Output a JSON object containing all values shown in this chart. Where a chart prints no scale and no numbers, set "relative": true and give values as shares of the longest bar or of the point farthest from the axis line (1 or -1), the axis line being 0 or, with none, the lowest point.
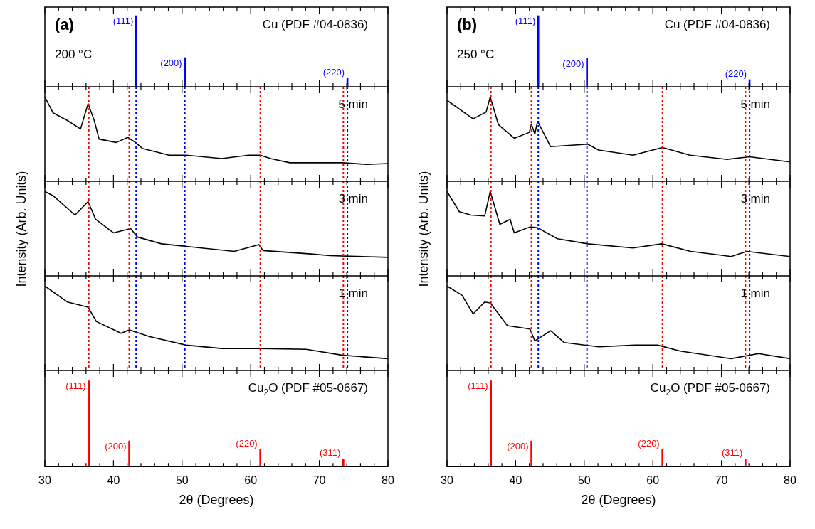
{
  "chart_data": [
    {
      "type": "bar",
      "relative": true,
      "x": [
        43.3,
        50.4,
        74.1
      ],
      "xlim": [
        30,
        80
      ],
      "tick_labels": false,
      "xticks": [
        30,
        {
          "value": 32,
          "label": null
        },
        {
          "value": 34,
          "label": null
        },
        {
          "value": 36,
          "label": null
        },
        {
          "value": 38,
          "label": null
        },
        40,
        {
          "value": 42,
          "label": null
        },
        {
          "value": 44,
          "label": null
        },
        {
          "value": 46,
          "label": null
        },
        {
          "value": 48,
          "label": null
        },
        50,
        {
          "value": 52,
          "label": null
        },
        {
          "value": 54,
          "label": null
        },
        {
          "value": 56,
          "label": null
        },
        {
          "value": 58,
          "label": null
        },
        60,
        {
          "value": 62,
          "label": null
        },
        {
          "value": 64,
          "label": null
        },
        {
          "value": 66,
          "label": null
        },
        {
          "value": 68,
          "label": null
        },
        70,
        {
          "value": 72,
          "label": null
        },
        {
          "value": 74,
          "label": null
        },
        {
          "value": 76,
          "label": null
        },
        {
          "value": 78,
          "label": null
        },
        80
      ],
      "series": [
        {
          "color": "#0000ff",
          "values": [
            1,
            0.41,
            0.12
          ]
        }
      ],
      "annotations": [
        "(a)",
        "200 °C",
        "Cu (PDF #04-0836)",
        {
          "text": "(111)",
          "x": 43.3,
          "y": 1
        },
        {
          "text": "(200)",
          "x": 50.4,
          "y": 0.41
        },
        {
          "text": "(220)",
          "x": 74.1,
          "y": 0.12
        }
      ]
    },
    {
      "type": "line",
      "relative": true,
      "marker": "none",
      "line_style": "solid",
      "xlim": [
        30,
        80
      ],
      "tick_labels": false,
      "xticks": [
        30,
        {
          "value": 32,
          "label": null
        },
        {
          "value": 34,
          "label": null
        },
        {
          "value": 36,
          "label": null
        },
        {
          "value": 38,
          "label": null
        },
        40,
        {
          "value": 42,
          "label": null
        },
        {
          "value": 44,
          "label": null
        },
        {
          "value": 46,
          "label": null
        },
        {
          "value": 48,
          "label": null
        },
        50,
        {
          "value": 52,
          "label": null
        },
        {
          "value": 54,
          "label": null
        },
        {
          "value": 56,
          "label": null
        },
        {
          "value": 58,
          "label": null
        },
        60,
        {
          "value": 62,
          "label": null
        },
        {
          "value": 64,
          "label": null
        },
        {
          "value": 66,
          "label": null
        },
        {
          "value": 68,
          "label": null
        },
        70,
        {
          "value": 72,
          "label": null
        },
        {
          "value": 74,
          "label": null
        },
        {
          "value": 76,
          "label": null
        },
        {
          "value": 78,
          "label": null
        },
        80
      ],
      "x": [
        30,
        31.2,
        33.3,
        35.2,
        36.3,
        37.2,
        37.9,
        40.4,
        42.1,
        43.2,
        44.2,
        48.1,
        50.6,
        55.8,
        59.7,
        61.4,
        62.9,
        65.7,
        68.1,
        73.4,
        76.9,
        80
      ],
      "series": [
        {
          "color": "#000000",
          "values": [
            1,
            0.81,
            0.72,
            0.62,
            0.92,
            0.72,
            0.5,
            0.46,
            0.52,
            0.46,
            0.39,
            0.31,
            0.31,
            0.27,
            0.31,
            0.31,
            0.27,
            0.22,
            0.22,
            0.22,
            0.2,
            0.21
          ]
        }
      ],
      "ref_lines": [
        {
          "axis": "x",
          "value": 36.4,
          "color": "#ff0000",
          "line_style": "dotted"
        },
        {
          "axis": "x",
          "value": 42.3,
          "color": "#ff0000",
          "line_style": "dotted"
        },
        {
          "axis": "x",
          "value": 61.4,
          "color": "#ff0000",
          "line_style": "dotted"
        },
        {
          "axis": "x",
          "value": 73.5,
          "color": "#ff0000",
          "line_style": "dotted"
        },
        {
          "axis": "x",
          "value": 43.3,
          "color": "#0000ff",
          "line_style": "dotted"
        },
        {
          "axis": "x",
          "value": 50.4,
          "color": "#0000ff",
          "line_style": "dotted"
        },
        {
          "axis": "x",
          "value": 74.1,
          "color": "#0000ff",
          "line_style": "dotted"
        }
      ],
      "annotations": [
        "5 min"
      ]
    },
    {
      "type": "line",
      "relative": true,
      "marker": "none",
      "line_style": "solid",
      "xlim": [
        30,
        80
      ],
      "tick_labels": false,
      "ylabel": "Intensity (Arb. Units)",
      "xticks": [
        30,
        {
          "value": 32,
          "label": null
        },
        {
          "value": 34,
          "label": null
        },
        {
          "value": 36,
          "label": null
        },
        {
          "value": 38,
          "label": null
        },
        40,
        {
          "value": 42,
          "label": null
        },
        {
          "value": 44,
          "label": null
        },
        {
          "value": 46,
          "label": null
        },
        {
          "value": 48,
          "label": null
        },
        50,
        {
          "value": 52,
          "label": null
        },
        {
          "value": 54,
          "label": null
        },
        {
          "value": 56,
          "label": null
        },
        {
          "value": 58,
          "label": null
        },
        60,
        {
          "value": 62,
          "label": null
        },
        {
          "value": 64,
          "label": null
        },
        {
          "value": 66,
          "label": null
        },
        {
          "value": 68,
          "label": null
        },
        70,
        {
          "value": 72,
          "label": null
        },
        {
          "value": 74,
          "label": null
        },
        {
          "value": 76,
          "label": null
        },
        {
          "value": 78,
          "label": null
        },
        80
      ],
      "x": [
        30,
        31.2,
        34.4,
        36.3,
        37.4,
        40.0,
        42.5,
        43.5,
        47.0,
        50.6,
        57.6,
        61.2,
        61.8,
        68.8,
        71.6,
        80
      ],
      "series": [
        {
          "color": "#000000",
          "values": [
            1,
            0.95,
            0.72,
            0.88,
            0.67,
            0.51,
            0.56,
            0.46,
            0.38,
            0.35,
            0.29,
            0.37,
            0.3,
            0.26,
            0.24,
            0.22
          ]
        }
      ],
      "ref_lines": [
        {
          "axis": "x",
          "value": 36.4,
          "color": "#ff0000",
          "line_style": "dotted"
        },
        {
          "axis": "x",
          "value": 42.3,
          "color": "#ff0000",
          "line_style": "dotted"
        },
        {
          "axis": "x",
          "value": 61.4,
          "color": "#ff0000",
          "line_style": "dotted"
        },
        {
          "axis": "x",
          "value": 73.5,
          "color": "#ff0000",
          "line_style": "dotted"
        },
        {
          "axis": "x",
          "value": 43.3,
          "color": "#0000ff",
          "line_style": "dotted"
        },
        {
          "axis": "x",
          "value": 50.4,
          "color": "#0000ff",
          "line_style": "dotted"
        },
        {
          "axis": "x",
          "value": 74.1,
          "color": "#0000ff",
          "line_style": "dotted"
        }
      ],
      "annotations": [
        "3 min"
      ]
    },
    {
      "type": "line",
      "relative": true,
      "marker": "none",
      "line_style": "solid",
      "xlim": [
        30,
        80
      ],
      "tick_labels": false,
      "xticks": [
        30,
        {
          "value": 32,
          "label": null
        },
        {
          "value": 34,
          "label": null
        },
        {
          "value": 36,
          "label": null
        },
        {
          "value": 38,
          "label": null
        },
        40,
        {
          "value": 42,
          "label": null
        },
        {
          "value": 44,
          "label": null
        },
        {
          "value": 46,
          "label": null
        },
        {
          "value": 48,
          "label": null
        },
        50,
        {
          "value": 52,
          "label": null
        },
        {
          "value": 54,
          "label": null
        },
        {
          "value": 56,
          "label": null
        },
        {
          "value": 58,
          "label": null
        },
        60,
        {
          "value": 62,
          "label": null
        },
        {
          "value": 64,
          "label": null
        },
        {
          "value": 66,
          "label": null
        },
        {
          "value": 68,
          "label": null
        },
        70,
        {
          "value": 72,
          "label": null
        },
        {
          "value": 74,
          "label": null
        },
        {
          "value": 76,
          "label": null
        },
        {
          "value": 78,
          "label": null
        },
        80
      ],
      "x": [
        30,
        33.3,
        36.3,
        37.5,
        41.1,
        42.3,
        45.3,
        50.6,
        55.8,
        61.4,
        68.1,
        73.4,
        80
      ],
      "series": [
        {
          "color": "#000000",
          "values": [
            1,
            0.81,
            0.75,
            0.58,
            0.44,
            0.48,
            0.4,
            0.3,
            0.26,
            0.26,
            0.25,
            0.18,
            0.14
          ]
        }
      ],
      "ref_lines": [
        {
          "axis": "x",
          "value": 36.4,
          "color": "#ff0000",
          "line_style": "dotted"
        },
        {
          "axis": "x",
          "value": 42.3,
          "color": "#ff0000",
          "line_style": "dotted"
        },
        {
          "axis": "x",
          "value": 61.4,
          "color": "#ff0000",
          "line_style": "dotted"
        },
        {
          "axis": "x",
          "value": 73.5,
          "color": "#ff0000",
          "line_style": "dotted"
        },
        {
          "axis": "x",
          "value": 43.3,
          "color": "#0000ff",
          "line_style": "dotted"
        },
        {
          "axis": "x",
          "value": 50.4,
          "color": "#0000ff",
          "line_style": "dotted"
        },
        {
          "axis": "x",
          "value": 74.1,
          "color": "#0000ff",
          "line_style": "dotted"
        }
      ],
      "annotations": [
        "1 min"
      ]
    },
    {
      "type": "bar",
      "relative": true,
      "x": [
        36.4,
        42.3,
        61.4,
        73.5
      ],
      "xlim": [
        30,
        80
      ],
      "tick_labels": "x",
      "xlabel": "2θ (Degrees)",
      "xticks": [
        30,
        {
          "value": 32,
          "label": null
        },
        {
          "value": 34,
          "label": null
        },
        {
          "value": 36,
          "label": null
        },
        {
          "value": 38,
          "label": null
        },
        40,
        {
          "value": 42,
          "label": null
        },
        {
          "value": 44,
          "label": null
        },
        {
          "value": 46,
          "label": null
        },
        {
          "value": 48,
          "label": null
        },
        50,
        {
          "value": 52,
          "label": null
        },
        {
          "value": 54,
          "label": null
        },
        {
          "value": 56,
          "label": null
        },
        {
          "value": 58,
          "label": null
        },
        60,
        {
          "value": 62,
          "label": null
        },
        {
          "value": 64,
          "label": null
        },
        {
          "value": 66,
          "label": null
        },
        {
          "value": 68,
          "label": null
        },
        70,
        {
          "value": 72,
          "label": null
        },
        {
          "value": 74,
          "label": null
        },
        {
          "value": 76,
          "label": null
        },
        {
          "value": 78,
          "label": null
        },
        80
      ],
      "series": [
        {
          "color": "#ff0000",
          "values": [
            1,
            0.3,
            0.2,
            0.09
          ]
        }
      ],
      "annotations": [
        "Cu$_{2}$O (PDF #05-0667)",
        {
          "text": "(111)",
          "x": 36.4,
          "y": 1
        },
        {
          "text": "(200)",
          "x": 42.3,
          "y": 0.3
        },
        {
          "text": "(220)",
          "x": 61.4,
          "y": 0.2
        },
        {
          "text": "(311)",
          "x": 73.5,
          "y": 0.09
        }
      ]
    },
    {
      "type": "bar",
      "relative": true,
      "x": [
        43.3,
        50.4,
        74.1
      ],
      "xlim": [
        30,
        80
      ],
      "tick_labels": false,
      "xticks": [
        30,
        {
          "value": 32,
          "label": null
        },
        {
          "value": 34,
          "label": null
        },
        {
          "value": 36,
          "label": null
        },
        {
          "value": 38,
          "label": null
        },
        40,
        {
          "value": 42,
          "label": null
        },
        {
          "value": 44,
          "label": null
        },
        {
          "value": 46,
          "label": null
        },
        {
          "value": 48,
          "label": null
        },
        50,
        {
          "value": 52,
          "label": null
        },
        {
          "value": 54,
          "label": null
        },
        {
          "value": 56,
          "label": null
        },
        {
          "value": 58,
          "label": null
        },
        60,
        {
          "value": 62,
          "label": null
        },
        {
          "value": 64,
          "label": null
        },
        {
          "value": 66,
          "label": null
        },
        {
          "value": 68,
          "label": null
        },
        70,
        {
          "value": 72,
          "label": null
        },
        {
          "value": 74,
          "label": null
        },
        {
          "value": 76,
          "label": null
        },
        {
          "value": 78,
          "label": null
        },
        80
      ],
      "series": [
        {
          "color": "#0000ff",
          "values": [
            1,
            0.4,
            0.1
          ]
        }
      ],
      "annotations": [
        "(b)",
        "250 °C",
        "Cu (PDF #04-0836)",
        {
          "text": "(111)",
          "x": 43.3,
          "y": 1
        },
        {
          "text": "(200)",
          "x": 50.4,
          "y": 0.4
        },
        {
          "text": "(220)",
          "x": 74.1,
          "y": 0.1
        }
      ]
    },
    {
      "type": "line",
      "relative": true,
      "marker": "none",
      "line_style": "solid",
      "xlim": [
        30,
        80
      ],
      "tick_labels": false,
      "xticks": [
        30,
        {
          "value": 32,
          "label": null
        },
        {
          "value": 34,
          "label": null
        },
        {
          "value": 36,
          "label": null
        },
        {
          "value": 38,
          "label": null
        },
        40,
        {
          "value": 42,
          "label": null
        },
        {
          "value": 44,
          "label": null
        },
        {
          "value": 46,
          "label": null
        },
        {
          "value": 48,
          "label": null
        },
        50,
        {
          "value": 52,
          "label": null
        },
        {
          "value": 54,
          "label": null
        },
        {
          "value": 56,
          "label": null
        },
        {
          "value": 58,
          "label": null
        },
        60,
        {
          "value": 62,
          "label": null
        },
        {
          "value": 64,
          "label": null
        },
        {
          "value": 66,
          "label": null
        },
        {
          "value": 68,
          "label": null
        },
        70,
        {
          "value": 72,
          "label": null
        },
        {
          "value": 74,
          "label": null
        },
        {
          "value": 76,
          "label": null
        },
        {
          "value": 78,
          "label": null
        },
        80
      ],
      "x": [
        30,
        33.8,
        35.7,
        36.3,
        37.5,
        39.8,
        42.0,
        42.3,
        42.8,
        43.2,
        45.1,
        50.5,
        52.1,
        57.1,
        61.4,
        65.4,
        70.8,
        74.1,
        80
      ],
      "series": [
        {
          "color": "#000000",
          "values": [
            0.96,
            0.74,
            0.82,
            1,
            0.67,
            0.51,
            0.58,
            0.68,
            0.56,
            0.71,
            0.41,
            0.44,
            0.37,
            0.31,
            0.4,
            0.31,
            0.26,
            0.29,
            0.23
          ]
        }
      ],
      "ref_lines": [
        {
          "axis": "x",
          "value": 36.4,
          "color": "#ff0000",
          "line_style": "dotted"
        },
        {
          "axis": "x",
          "value": 42.3,
          "color": "#ff0000",
          "line_style": "dotted"
        },
        {
          "axis": "x",
          "value": 61.4,
          "color": "#ff0000",
          "line_style": "dotted"
        },
        {
          "axis": "x",
          "value": 73.5,
          "color": "#ff0000",
          "line_style": "dotted"
        },
        {
          "axis": "x",
          "value": 43.3,
          "color": "#0000ff",
          "line_style": "dotted"
        },
        {
          "axis": "x",
          "value": 50.4,
          "color": "#0000ff",
          "line_style": "dotted"
        },
        {
          "axis": "x",
          "value": 74.1,
          "color": "#0000ff",
          "line_style": "dotted"
        }
      ],
      "annotations": [
        "5 min"
      ]
    },
    {
      "type": "line",
      "relative": true,
      "marker": "none",
      "line_style": "solid",
      "xlim": [
        30,
        80
      ],
      "tick_labels": false,
      "ylabel": "Intensity (Arb. Units)",
      "xticks": [
        30,
        {
          "value": 32,
          "label": null
        },
        {
          "value": 34,
          "label": null
        },
        {
          "value": 36,
          "label": null
        },
        {
          "value": 38,
          "label": null
        },
        40,
        {
          "value": 42,
          "label": null
        },
        {
          "value": 44,
          "label": null
        },
        {
          "value": 46,
          "label": null
        },
        {
          "value": 48,
          "label": null
        },
        50,
        {
          "value": 52,
          "label": null
        },
        {
          "value": 54,
          "label": null
        },
        {
          "value": 56,
          "label": null
        },
        {
          "value": 58,
          "label": null
        },
        60,
        {
          "value": 62,
          "label": null
        },
        {
          "value": 64,
          "label": null
        },
        {
          "value": 66,
          "label": null
        },
        {
          "value": 68,
          "label": null
        },
        70,
        {
          "value": 72,
          "label": null
        },
        {
          "value": 74,
          "label": null
        },
        {
          "value": 76,
          "label": null
        },
        {
          "value": 78,
          "label": null
        },
        80
      ],
      "x": [
        30,
        31.8,
        33.5,
        35.5,
        36.3,
        37.7,
        39.2,
        39.8,
        42.1,
        43.2,
        46.1,
        50.5,
        57.1,
        61.3,
        65.5,
        71.4,
        73.7,
        80
      ],
      "series": [
        {
          "color": "#000000",
          "values": [
            1,
            0.76,
            0.72,
            0.71,
            1,
            0.61,
            0.67,
            0.51,
            0.58,
            0.57,
            0.44,
            0.38,
            0.33,
            0.38,
            0.29,
            0.23,
            0.29,
            0.23
          ]
        }
      ],
      "ref_lines": [
        {
          "axis": "x",
          "value": 36.4,
          "color": "#ff0000",
          "line_style": "dotted"
        },
        {
          "axis": "x",
          "value": 42.3,
          "color": "#ff0000",
          "line_style": "dotted"
        },
        {
          "axis": "x",
          "value": 61.4,
          "color": "#ff0000",
          "line_style": "dotted"
        },
        {
          "axis": "x",
          "value": 73.5,
          "color": "#ff0000",
          "line_style": "dotted"
        },
        {
          "axis": "x",
          "value": 43.3,
          "color": "#0000ff",
          "line_style": "dotted"
        },
        {
          "axis": "x",
          "value": 50.4,
          "color": "#0000ff",
          "line_style": "dotted"
        },
        {
          "axis": "x",
          "value": 74.1,
          "color": "#0000ff",
          "line_style": "dotted"
        }
      ],
      "annotations": [
        "3 min"
      ]
    },
    {
      "type": "line",
      "relative": true,
      "marker": "none",
      "line_style": "solid",
      "xlim": [
        30,
        80
      ],
      "tick_labels": false,
      "xticks": [
        30,
        {
          "value": 32,
          "label": null
        },
        {
          "value": 34,
          "label": null
        },
        {
          "value": 36,
          "label": null
        },
        {
          "value": 38,
          "label": null
        },
        40,
        {
          "value": 42,
          "label": null
        },
        {
          "value": 44,
          "label": null
        },
        {
          "value": 46,
          "label": null
        },
        {
          "value": 48,
          "label": null
        },
        50,
        {
          "value": 52,
          "label": null
        },
        {
          "value": 54,
          "label": null
        },
        {
          "value": 56,
          "label": null
        },
        {
          "value": 58,
          "label": null
        },
        60,
        {
          "value": 62,
          "label": null
        },
        {
          "value": 64,
          "label": null
        },
        {
          "value": 66,
          "label": null
        },
        {
          "value": 68,
          "label": null
        },
        70,
        {
          "value": 72,
          "label": null
        },
        {
          "value": 74,
          "label": null
        },
        {
          "value": 76,
          "label": null
        },
        {
          "value": 78,
          "label": null
        },
        80
      ],
      "x": [
        30,
        32.2,
        33.8,
        35.5,
        36.3,
        38.8,
        42.1,
        42.8,
        45.1,
        47.1,
        52.1,
        57.4,
        60.7,
        64.0,
        71.4,
        75.4,
        80
      ],
      "series": [
        {
          "color": "#000000",
          "values": [
            1,
            0.89,
            0.67,
            0.81,
            0.8,
            0.53,
            0.49,
            0.35,
            0.47,
            0.33,
            0.28,
            0.3,
            0.3,
            0.23,
            0.14,
            0.2,
            0.14
          ]
        }
      ],
      "ref_lines": [
        {
          "axis": "x",
          "value": 36.4,
          "color": "#ff0000",
          "line_style": "dotted"
        },
        {
          "axis": "x",
          "value": 42.3,
          "color": "#ff0000",
          "line_style": "dotted"
        },
        {
          "axis": "x",
          "value": 61.4,
          "color": "#ff0000",
          "line_style": "dotted"
        },
        {
          "axis": "x",
          "value": 73.5,
          "color": "#ff0000",
          "line_style": "dotted"
        },
        {
          "axis": "x",
          "value": 43.3,
          "color": "#0000ff",
          "line_style": "dotted"
        },
        {
          "axis": "x",
          "value": 50.4,
          "color": "#0000ff",
          "line_style": "dotted"
        },
        {
          "axis": "x",
          "value": 74.1,
          "color": "#0000ff",
          "line_style": "dotted"
        }
      ],
      "annotations": [
        "1 min"
      ]
    },
    {
      "type": "bar",
      "relative": true,
      "x": [
        36.4,
        42.3,
        61.4,
        73.5
      ],
      "xlim": [
        30,
        80
      ],
      "tick_labels": "x",
      "xlabel": "2θ (Degrees)",
      "xticks": [
        30,
        {
          "value": 32,
          "label": null
        },
        {
          "value": 34,
          "label": null
        },
        {
          "value": 36,
          "label": null
        },
        {
          "value": 38,
          "label": null
        },
        40,
        {
          "value": 42,
          "label": null
        },
        {
          "value": 44,
          "label": null
        },
        {
          "value": 46,
          "label": null
        },
        {
          "value": 48,
          "label": null
        },
        50,
        {
          "value": 52,
          "label": null
        },
        {
          "value": 54,
          "label": null
        },
        {
          "value": 56,
          "label": null
        },
        {
          "value": 58,
          "label": null
        },
        60,
        {
          "value": 62,
          "label": null
        },
        {
          "value": 64,
          "label": null
        },
        {
          "value": 66,
          "label": null
        },
        {
          "value": 68,
          "label": null
        },
        70,
        {
          "value": 72,
          "label": null
        },
        {
          "value": 74,
          "label": null
        },
        {
          "value": 76,
          "label": null
        },
        {
          "value": 78,
          "label": null
        },
        80
      ],
      "series": [
        {
          "color": "#ff0000",
          "values": [
            1,
            0.3,
            0.2,
            0.09
          ]
        }
      ],
      "annotations": [
        "Cu$_{2}$O (PDF #05-0667)",
        {
          "text": "(111)",
          "x": 36.4,
          "y": 1
        },
        {
          "text": "(200)",
          "x": 42.3,
          "y": 0.3
        },
        {
          "text": "(220)",
          "x": 61.4,
          "y": 0.2
        },
        {
          "text": "(311)",
          "x": 73.5,
          "y": 0.09
        }
      ]
    }
  ]
}
